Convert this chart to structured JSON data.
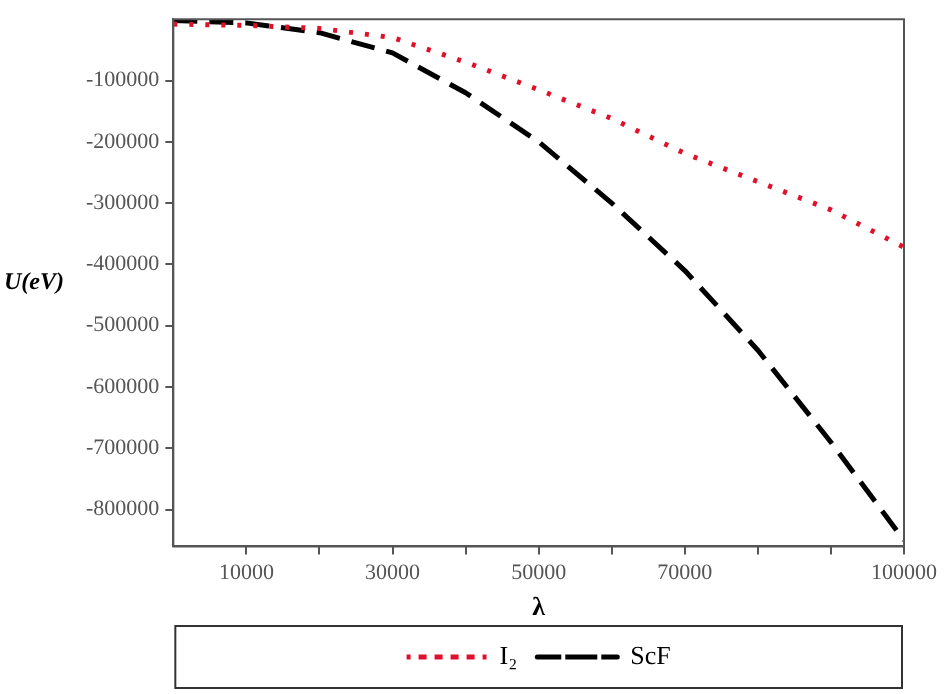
{
  "chart_data": {
    "type": "line",
    "xlabel": "λ",
    "ylabel": "U(eV)",
    "x": [
      0,
      10000,
      20000,
      30000,
      40000,
      50000,
      60000,
      70000,
      80000,
      90000,
      100000
    ],
    "series": [
      {
        "name": "I₂",
        "color": "#e0102a",
        "line_style": "dotted",
        "values": [
          -8000,
          -10000,
          -15000,
          -30000,
          -70000,
          -115000,
          -162000,
          -219000,
          -265000,
          -311000,
          -372000
        ]
      },
      {
        "name": "ScF",
        "color": "#000000",
        "line_style": "dashed",
        "values": [
          -2000,
          -6000,
          -22000,
          -55000,
          -120000,
          -200000,
          -300000,
          -410000,
          -540000,
          -690000,
          -850000
        ]
      }
    ],
    "xlim": [
      0,
      100000
    ],
    "ylim": [
      -860000,
      0
    ],
    "xticks": [
      10000,
      {
        "value": 20000,
        "label": null
      },
      30000,
      {
        "value": 40000,
        "label": null
      },
      50000,
      {
        "value": 60000,
        "label": null
      },
      70000,
      {
        "value": 80000,
        "label": null
      },
      {
        "value": 90000,
        "label": null
      },
      100000
    ],
    "yticks": [
      -800000,
      -700000,
      -600000,
      -500000,
      -400000,
      -300000,
      -200000,
      -100000
    ],
    "grid": false,
    "legend": "bottom",
    "marker": "none"
  }
}
